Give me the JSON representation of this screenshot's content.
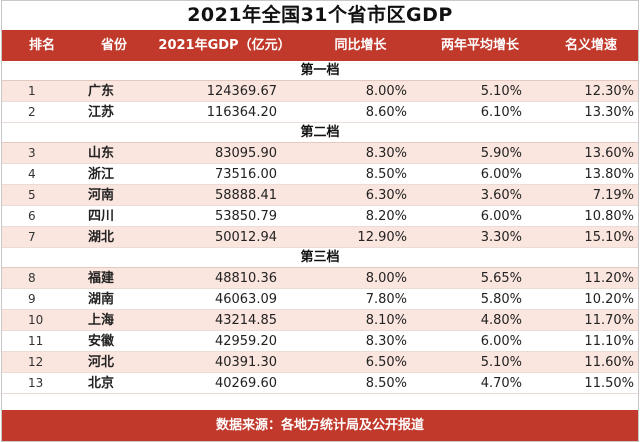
{
  "title": "2021年全国31个省市区GDP",
  "headers": {
    "rank": "排名",
    "province": "省份",
    "gdp": "2021年GDP（亿元）",
    "yoy": "同比增长",
    "two_year_avg": "两年平均增长",
    "nominal": "名义增速"
  },
  "tiers": [
    {
      "label": "第一档",
      "rows": [
        {
          "rank": "1",
          "province": "广东",
          "gdp": "124369.67",
          "yoy": "8.00%",
          "avg": "5.10%",
          "nominal": "12.30%"
        },
        {
          "rank": "2",
          "province": "江苏",
          "gdp": "116364.20",
          "yoy": "8.60%",
          "avg": "6.10%",
          "nominal": "13.30%"
        }
      ]
    },
    {
      "label": "第二档",
      "rows": [
        {
          "rank": "3",
          "province": "山东",
          "gdp": "83095.90",
          "yoy": "8.30%",
          "avg": "5.90%",
          "nominal": "13.60%"
        },
        {
          "rank": "4",
          "province": "浙江",
          "gdp": "73516.00",
          "yoy": "8.50%",
          "avg": "6.00%",
          "nominal": "13.80%"
        },
        {
          "rank": "5",
          "province": "河南",
          "gdp": "58888.41",
          "yoy": "6.30%",
          "avg": "3.60%",
          "nominal": "7.19%"
        },
        {
          "rank": "6",
          "province": "四川",
          "gdp": "53850.79",
          "yoy": "8.20%",
          "avg": "6.00%",
          "nominal": "10.80%"
        },
        {
          "rank": "7",
          "province": "湖北",
          "gdp": "50012.94",
          "yoy": "12.90%",
          "avg": "3.30%",
          "nominal": "15.10%"
        }
      ]
    },
    {
      "label": "第三档",
      "rows": [
        {
          "rank": "8",
          "province": "福建",
          "gdp": "48810.36",
          "yoy": "8.00%",
          "avg": "5.65%",
          "nominal": "11.20%"
        },
        {
          "rank": "9",
          "province": "湖南",
          "gdp": "46063.09",
          "yoy": "7.80%",
          "avg": "5.80%",
          "nominal": "10.20%"
        },
        {
          "rank": "10",
          "province": "上海",
          "gdp": "43214.85",
          "yoy": "8.10%",
          "avg": "4.80%",
          "nominal": "11.70%"
        },
        {
          "rank": "11",
          "province": "安徽",
          "gdp": "42959.20",
          "yoy": "8.30%",
          "avg": "6.00%",
          "nominal": "11.10%"
        },
        {
          "rank": "12",
          "province": "河北",
          "gdp": "40391.30",
          "yoy": "6.50%",
          "avg": "5.10%",
          "nominal": "11.60%"
        },
        {
          "rank": "13",
          "province": "北京",
          "gdp": "40269.60",
          "yoy": "8.50%",
          "avg": "4.70%",
          "nominal": "11.50%"
        }
      ]
    }
  ],
  "footer": "数据来源：各地方统计局及公开报道",
  "colors": {
    "header_bg": "#c0392b",
    "row_alt": "#fbe6df"
  }
}
